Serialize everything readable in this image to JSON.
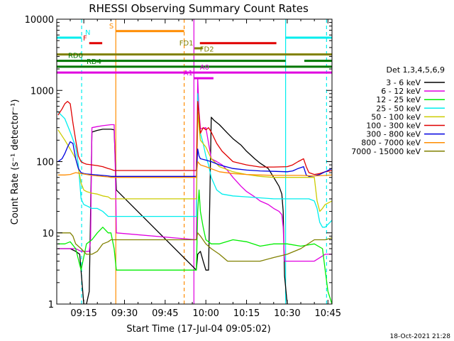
{
  "chart_data": {
    "type": "line",
    "title": "RHESSI Observing Summary Count Rates",
    "xlabel": "Start Time (17-Jul-04 09:05:02)",
    "ylabel": "Count Rate (s⁻¹ detector⁻¹)",
    "yscale": "log",
    "xlim": [
      5.03,
      106.5
    ],
    "ylim": [
      1,
      10000
    ],
    "x_unit": "minutes after 09:00",
    "x_ticks": [
      {
        "value": 15,
        "label": "09:15"
      },
      {
        "value": 30,
        "label": "09:30"
      },
      {
        "value": 45,
        "label": "09:45"
      },
      {
        "value": 60,
        "label": "10:00"
      },
      {
        "value": 75,
        "label": "10:15"
      },
      {
        "value": 90,
        "label": "10:30"
      },
      {
        "value": 105,
        "label": "10:45"
      }
    ],
    "y_ticks": [
      {
        "value": 1,
        "label": "1"
      },
      {
        "value": 10,
        "label": "10"
      },
      {
        "value": 100,
        "label": "100"
      },
      {
        "value": 1000,
        "label": "1000"
      },
      {
        "value": 10000,
        "label": "10000"
      }
    ],
    "legend": {
      "title": "Det 1,3,4,5,6,9",
      "position": "right"
    },
    "series": [
      {
        "name": "3 - 6 keV",
        "color": "#000000",
        "x": [
          5.5,
          8,
          10,
          12,
          13.5,
          15,
          16,
          17,
          18,
          20,
          22,
          25,
          26.2,
          27,
          56.5,
          57,
          58,
          59,
          60,
          61,
          62,
          63,
          65,
          68,
          70,
          73,
          75,
          78,
          80,
          83,
          85,
          87,
          88,
          88.5,
          89,
          90
        ],
        "y": [
          6,
          6,
          6,
          5.5,
          5,
          1,
          1,
          1.5,
          260,
          275,
          285,
          285,
          280,
          40,
          3,
          5,
          5.5,
          4,
          3,
          3,
          420,
          380,
          330,
          250,
          210,
          170,
          140,
          110,
          95,
          80,
          60,
          45,
          35,
          20,
          2.5,
          1
        ]
      },
      {
        "name": "6 - 12 keV",
        "color": "#e000e0",
        "x": [
          5.5,
          8,
          10,
          12,
          14,
          16,
          17,
          17.5,
          18,
          20,
          22,
          25,
          26.2,
          26.7,
          27,
          56.5,
          57,
          57.5,
          58,
          60,
          62,
          64,
          66,
          68,
          70,
          73,
          75,
          78,
          80,
          83,
          85,
          87,
          88,
          88.5,
          89,
          90,
          96,
          100,
          104,
          106.5
        ],
        "y": [
          6,
          6,
          6,
          6,
          5.5,
          5.5,
          5.5,
          8,
          300,
          310,
          320,
          330,
          330,
          60,
          10,
          8,
          1500,
          500,
          290,
          300,
          110,
          100,
          90,
          75,
          60,
          45,
          38,
          32,
          28,
          25,
          22,
          20,
          18,
          12,
          4,
          4,
          4,
          4,
          5,
          5
        ]
      },
      {
        "name": "12 - 25 keV",
        "color": "#00ee00",
        "x": [
          5.5,
          8,
          10,
          12,
          14,
          16,
          18,
          20,
          22,
          24,
          25,
          26.2,
          27,
          56.5,
          57,
          57.5,
          58,
          59,
          60,
          62,
          65,
          70,
          75,
          80,
          85,
          90,
          95,
          100,
          103,
          104,
          105,
          106.5
        ],
        "y": [
          7,
          7,
          7.5,
          6,
          3,
          7,
          8,
          10,
          12,
          10,
          10,
          6,
          3,
          3,
          20,
          40,
          20,
          12,
          8,
          7,
          7,
          8,
          7.5,
          6.5,
          7,
          7,
          6.5,
          7,
          6,
          3,
          1.5,
          1
        ]
      },
      {
        "name": "25 - 50 keV",
        "color": "#00eeee",
        "x": [
          5.5,
          8,
          10,
          12,
          13,
          14,
          15,
          16,
          17,
          18,
          20,
          22,
          24,
          25,
          26.2,
          27,
          56.5,
          57,
          57.5,
          58,
          59,
          60,
          61,
          62,
          64,
          66,
          70,
          75,
          80,
          85,
          88,
          90,
          92,
          94,
          96,
          98,
          100,
          101,
          102,
          103,
          104,
          106.5
        ],
        "y": [
          500,
          400,
          260,
          160,
          90,
          30,
          25,
          24,
          23,
          22,
          22,
          20,
          17,
          17,
          17,
          17,
          17,
          900,
          400,
          250,
          180,
          120,
          90,
          60,
          40,
          35,
          33,
          32,
          31,
          30,
          30,
          30,
          30,
          30,
          30,
          30,
          28,
          22,
          14,
          12,
          12,
          15
        ]
      },
      {
        "name": "50 - 100 keV",
        "color": "#cccc00",
        "x": [
          5.5,
          8,
          10,
          12,
          13,
          14,
          15,
          16,
          18,
          20,
          22,
          24,
          25,
          26.2,
          27,
          56.5,
          57,
          57.5,
          58,
          60,
          62,
          65,
          70,
          75,
          80,
          85,
          90,
          95,
          100,
          101,
          102,
          103,
          104,
          106.5
        ],
        "y": [
          280,
          200,
          150,
          110,
          80,
          50,
          40,
          38,
          36,
          35,
          33,
          32,
          30,
          30,
          30,
          30,
          500,
          300,
          200,
          160,
          110,
          85,
          72,
          66,
          62,
          60,
          60,
          60,
          60,
          28,
          20,
          22,
          25,
          28
        ]
      },
      {
        "name": "100 - 300 keV",
        "color": "#e00000",
        "x": [
          5.5,
          7,
          8,
          9,
          10,
          11,
          12,
          13,
          14,
          15,
          16,
          18,
          20,
          22,
          24,
          25,
          26.2,
          27,
          56.5,
          57,
          57.5,
          58,
          59,
          60,
          61,
          62,
          64,
          66,
          70,
          75,
          80,
          85,
          90,
          92,
          94,
          96,
          97,
          98,
          100,
          102,
          104,
          106.5
        ],
        "y": [
          450,
          550,
          650,
          700,
          650,
          350,
          200,
          120,
          100,
          95,
          92,
          90,
          88,
          85,
          80,
          78,
          75,
          75,
          75,
          700,
          450,
          250,
          300,
          280,
          300,
          260,
          180,
          140,
          100,
          90,
          84,
          84,
          85,
          90,
          100,
          110,
          85,
          70,
          66,
          68,
          72,
          75
        ]
      },
      {
        "name": "300 - 800 keV",
        "color": "#0000e0",
        "x": [
          5.5,
          7,
          8,
          9,
          10,
          11,
          12,
          13,
          14,
          15,
          16,
          18,
          20,
          22,
          24,
          25,
          26.2,
          27,
          56.5,
          57,
          57.5,
          58,
          60,
          62,
          65,
          70,
          75,
          80,
          85,
          90,
          92,
          94,
          96,
          97,
          98,
          100,
          102,
          104,
          106.5
        ],
        "y": [
          100,
          110,
          130,
          160,
          190,
          180,
          110,
          80,
          70,
          68,
          67,
          66,
          65,
          64,
          63,
          62,
          62,
          62,
          62,
          150,
          120,
          110,
          105,
          100,
          90,
          80,
          76,
          74,
          73,
          72,
          74,
          80,
          85,
          65,
          62,
          63,
          66,
          72,
          80
        ]
      },
      {
        "name": "800 - 7000 keV",
        "color": "#ff8c00",
        "x": [
          5.5,
          8,
          10,
          12,
          14,
          16,
          18,
          20,
          22,
          24,
          25,
          26.2,
          27,
          56.5,
          57,
          58,
          60,
          65,
          70,
          75,
          80,
          85,
          90,
          95,
          100,
          104,
          106.5
        ],
        "y": [
          65,
          65,
          66,
          70,
          68,
          66,
          64,
          63,
          62,
          61,
          60,
          60,
          60,
          60,
          100,
          90,
          85,
          72,
          68,
          66,
          65,
          64,
          64,
          64,
          63,
          64,
          65
        ]
      },
      {
        "name": "7000 - 15000 keV",
        "color": "#808000",
        "x": [
          5.5,
          8,
          10,
          11,
          12,
          14,
          16,
          18,
          20,
          22,
          24,
          25,
          26.2,
          27,
          56.5,
          57,
          58,
          60,
          62,
          65,
          68,
          70,
          75,
          80,
          85,
          90,
          95,
          100,
          104,
          106.5
        ],
        "y": [
          10,
          10,
          10,
          9,
          7,
          6,
          5,
          5,
          5.5,
          7,
          7.5,
          8,
          8,
          8,
          8,
          10,
          9,
          7,
          6,
          5,
          4,
          4,
          4,
          4,
          4.5,
          5,
          6,
          8,
          8,
          8.5
        ]
      }
    ],
    "vertical_markers": [
      {
        "x": 14.2,
        "color": "#00eeee",
        "style": "dashed"
      },
      {
        "x": 26.8,
        "color": "#ff8c00",
        "style": "solid"
      },
      {
        "x": 52.0,
        "color": "#ff8c00",
        "style": "dashed"
      },
      {
        "x": 55.6,
        "color": "#e000e0",
        "style": "solid"
      },
      {
        "x": 89.4,
        "color": "#00eeee",
        "style": "solid"
      },
      {
        "x": 104.5,
        "color": "#00eeee",
        "style": "dashed"
      }
    ],
    "flag_bars": [
      {
        "label": "N",
        "color": "#00eeee",
        "y": 5500,
        "segments": [
          [
            5.03,
            14.2
          ],
          [
            89.4,
            106.5
          ]
        ],
        "label_x": 15.5,
        "label_side": "right"
      },
      {
        "label": "S",
        "color": "#ff8c00",
        "y": 6800,
        "segments": [
          [
            26.8,
            52.0
          ]
        ],
        "label_x": 26.0,
        "label_side": "left"
      },
      {
        "label": "F",
        "color": "#e00000",
        "y": 4600,
        "segments": [
          [
            17.0,
            21.8
          ],
          [
            57.8,
            86.0
          ]
        ],
        "label_x": 16.2,
        "label_side": "left"
      },
      {
        "label": "FD1",
        "color": "#808000",
        "y": 3900,
        "segments": [
          [
            55.8,
            58.8
          ]
        ],
        "label_x": 55.4,
        "label_side": "left"
      },
      {
        "label": "FD2",
        "color": "#808000",
        "y": 3200,
        "segments": [
          [
            5.03,
            106.5
          ]
        ],
        "label_x": 57.8,
        "label_side": "right"
      },
      {
        "label": "RD0",
        "color": "#007700",
        "y": 2600,
        "segments": [
          [
            5.03,
            89.4
          ],
          [
            96.3,
            106.5
          ]
        ],
        "label_x": 9.2,
        "label_side": "right"
      },
      {
        "label": "RD4",
        "color": "#007700",
        "y": 2150,
        "segments": [
          [
            5.03,
            14.2
          ],
          [
            14.2,
            55.6
          ],
          [
            55.6,
            106.5
          ]
        ],
        "label_x": 16.0,
        "label_side": "right"
      },
      {
        "label": "A0",
        "color": "#e000e0",
        "y": 1780,
        "segments": [
          [
            5.03,
            106.5
          ]
        ],
        "label_x": 57.8,
        "label_side": "right"
      },
      {
        "label": "A1",
        "color": "#e000e0",
        "y": 1480,
        "segments": [
          [
            55.6,
            62.8
          ]
        ],
        "label_x": 55.2,
        "label_side": "left"
      }
    ],
    "timestamp": "18-Oct-2021 21:28"
  }
}
